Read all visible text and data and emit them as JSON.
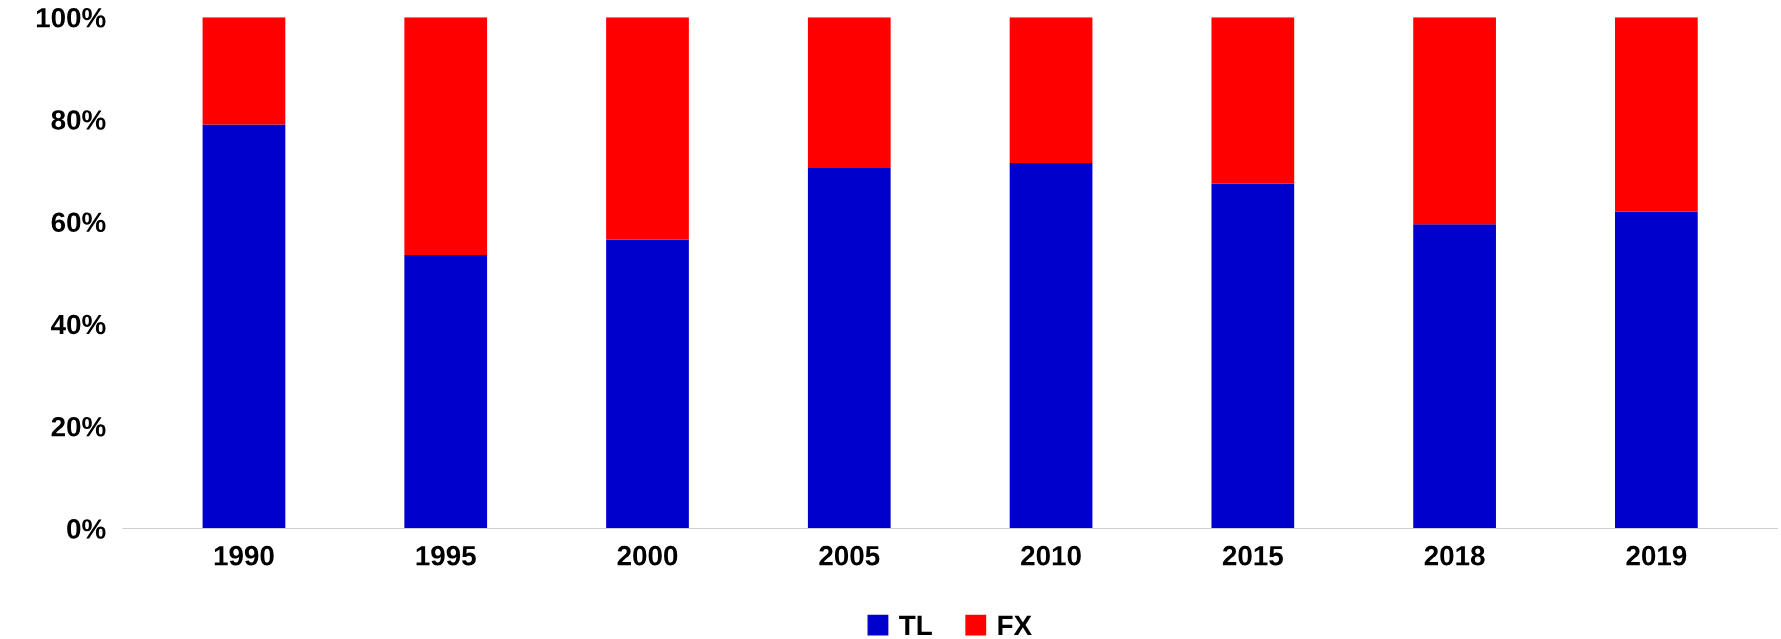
{
  "chart_data": {
    "type": "bar",
    "stacked": true,
    "categories": [
      "1990",
      "1995",
      "2000",
      "2005",
      "2010",
      "2015",
      "2018",
      "2019"
    ],
    "series": [
      {
        "name": "TL",
        "color": "#0000cc",
        "values": [
          79,
          53.5,
          56.5,
          70.5,
          71.5,
          67.5,
          59.5,
          62
        ]
      },
      {
        "name": "FX",
        "color": "#ff0000",
        "values": [
          21,
          46.5,
          43.5,
          29.5,
          28.5,
          32.5,
          40.5,
          38
        ]
      }
    ],
    "ylim": [
      0,
      100
    ],
    "yticks": [
      {
        "value": 0,
        "label": "0%"
      },
      {
        "value": 20,
        "label": "20%"
      },
      {
        "value": 40,
        "label": "40%"
      },
      {
        "value": 60,
        "label": "60%"
      },
      {
        "value": 80,
        "label": "80%"
      },
      {
        "value": 100,
        "label": "100%"
      }
    ],
    "grid": false,
    "legend": "bottom"
  }
}
